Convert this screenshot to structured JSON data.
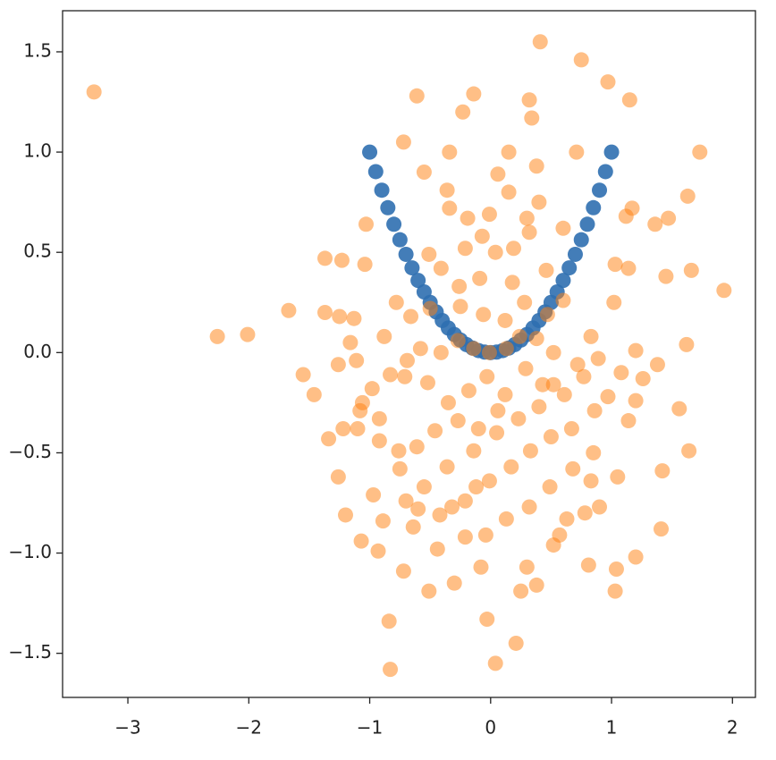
{
  "chart_data": {
    "type": "scatter",
    "xlim": [
      -3.54,
      2.19
    ],
    "ylim": [
      -1.72,
      1.705
    ],
    "xticks": [
      {
        "value": -3,
        "label": "−3"
      },
      {
        "value": -2,
        "label": "−2"
      },
      {
        "value": -1,
        "label": "−1"
      },
      0,
      1,
      2
    ],
    "yticks": [
      {
        "value": -1.5,
        "label": "−1.5"
      },
      {
        "value": -1.0,
        "label": "−1.0"
      },
      {
        "value": -0.5,
        "label": "−0.5"
      },
      {
        "value": 0,
        "label": "0.0"
      },
      0.5,
      {
        "value": 1.0,
        "label": "1.0"
      },
      1.5
    ],
    "series": [
      {
        "color": "#2f6fb0",
        "alpha": 0.9,
        "x": [
          -1,
          -0.95,
          -0.9,
          -0.85,
          -0.8,
          -0.75,
          -0.7,
          -0.65,
          -0.6,
          -0.55,
          -0.5,
          -0.45,
          -0.4,
          -0.35,
          -0.3,
          -0.25,
          -0.2,
          -0.15,
          -0.1,
          -0.05,
          0,
          0.05,
          0.1,
          0.15,
          0.2,
          0.25,
          0.3,
          0.35,
          0.4,
          0.45,
          0.5,
          0.55,
          0.6,
          0.65,
          0.7,
          0.75,
          0.8,
          0.85,
          0.9,
          0.95,
          1
        ],
        "y": [
          1,
          0.9025,
          0.81,
          0.7225,
          0.64,
          0.5625,
          0.49,
          0.4225,
          0.36,
          0.3025,
          0.25,
          0.2025,
          0.16,
          0.1225,
          0.09,
          0.0625,
          0.04,
          0.0225,
          0.01,
          0.0025,
          0,
          0.0025,
          0.01,
          0.0225,
          0.04,
          0.0625,
          0.09,
          0.1225,
          0.16,
          0.2025,
          0.25,
          0.3025,
          0.36,
          0.4225,
          0.49,
          0.5625,
          0.64,
          0.7225,
          0.81,
          0.9025,
          1
        ]
      },
      {
        "color": "#ff7f0e",
        "alpha": 0.5,
        "x": [
          -3.28,
          -2.26,
          -2.01,
          -1.67,
          0.41,
          0.75,
          0.97,
          1.15,
          1.73,
          1.93,
          -0.83,
          0.04,
          -0.84,
          0.21,
          -0.03,
          1.03,
          1.2,
          1.41,
          1.64,
          1.56,
          1.62,
          1.45,
          1.66,
          1.63,
          -0.61,
          -0.14,
          -0.23,
          0.32,
          0.34,
          -0.34,
          -0.72,
          0.15,
          0.38,
          0.71,
          1.36,
          1.47,
          1.17,
          1.12,
          1.03,
          1.14,
          -1.37,
          -1.23,
          -1.04,
          -1.03,
          -1.37,
          -1.25,
          -1.13,
          -1.55,
          -1.46,
          -1.34,
          -1.26,
          -1.2,
          -1.07,
          -0.93,
          -0.72,
          -0.51,
          -0.3,
          -0.08,
          0.3,
          0.38,
          0.25,
          0.52,
          0.81,
          1.04,
          1.42,
          1.14,
          1.26,
          1.38,
          1.2,
          1.02,
          0.83,
          0.72,
          0.52,
          0.4,
          0.23,
          0.05,
          -0.14,
          -0.36,
          -0.55,
          -0.7,
          -0.89,
          -0.64,
          -0.42,
          -0.21,
          -0.01,
          0.17,
          0.33,
          0.5,
          0.67,
          0.86,
          0.97,
          0.85,
          0.68,
          0.49,
          0.32,
          0.13,
          -0.04,
          -0.21,
          -0.44,
          -0.75,
          -0.92,
          -1.08,
          -0.98,
          -0.83,
          -0.69,
          -0.52,
          -0.35,
          -0.18,
          -0.03,
          0.12,
          0.29,
          0.43,
          0.61,
          0.77,
          -0.21,
          -0.07,
          0.04,
          0.19,
          0.32,
          0.46,
          0.18,
          -0.09,
          -0.26,
          -0.41,
          -0.51,
          -0.34,
          -0.19,
          -0.01,
          0.15,
          0.3,
          0.4,
          0.6,
          -0.36,
          -0.55,
          0.06,
          -0.25,
          -0.06,
          0.12,
          0.28,
          0.47,
          0.6,
          -0.5,
          -0.66,
          -0.88,
          -0.78,
          -1.16,
          -1.26,
          -1.11,
          -1.1,
          -1.22,
          -0.97,
          -0.61,
          -0.46,
          -0.27,
          -0.1,
          0.06,
          -0.14,
          -0.01,
          0.13,
          -0.27,
          0.24,
          -0.58,
          -0.41,
          0.52,
          0.38,
          -0.71,
          0.89,
          1.08,
          1.2,
          0.83,
          1.05,
          0.9,
          0.63,
          0.57,
          0.78,
          -0.6,
          -0.32,
          -0.12,
          -0.76,
          -0.92,
          -1.06
        ],
        "y": [
          1.3,
          0.08,
          0.09,
          0.21,
          1.55,
          1.46,
          1.35,
          1.26,
          1,
          0.31,
          -1.58,
          -1.55,
          -1.34,
          -1.45,
          -1.33,
          -1.19,
          -1.02,
          -0.88,
          -0.49,
          -0.28,
          0.04,
          0.38,
          0.41,
          0.78,
          1.28,
          1.29,
          1.2,
          1.26,
          1.17,
          1,
          1.05,
          1,
          0.93,
          1,
          0.64,
          0.67,
          0.72,
          0.68,
          0.44,
          0.42,
          0.47,
          0.46,
          0.44,
          0.64,
          0.2,
          0.18,
          0.17,
          -0.11,
          -0.21,
          -0.43,
          -0.62,
          -0.81,
          -0.94,
          -0.99,
          -1.09,
          -1.19,
          -1.15,
          -1.07,
          -1.07,
          -1.16,
          -1.19,
          -0.96,
          -1.06,
          -1.08,
          -0.59,
          -0.34,
          -0.13,
          -0.06,
          0.01,
          0.25,
          0.08,
          -0.06,
          -0.16,
          -0.27,
          -0.33,
          -0.4,
          -0.49,
          -0.57,
          -0.67,
          -0.74,
          -0.84,
          -0.87,
          -0.81,
          -0.74,
          -0.64,
          -0.57,
          -0.49,
          -0.42,
          -0.38,
          -0.29,
          -0.22,
          -0.5,
          -0.58,
          -0.67,
          -0.77,
          -0.83,
          -0.91,
          -0.92,
          -0.98,
          -0.58,
          -0.44,
          -0.29,
          -0.18,
          -0.11,
          -0.04,
          -0.15,
          -0.25,
          -0.19,
          -0.12,
          -0.21,
          -0.08,
          -0.16,
          -0.21,
          -0.12,
          0.52,
          0.58,
          0.5,
          0.52,
          0.6,
          0.41,
          0.35,
          0.37,
          0.33,
          0.42,
          0.49,
          0.72,
          0.67,
          0.69,
          0.8,
          0.67,
          0.75,
          0.62,
          0.81,
          0.9,
          0.89,
          0.23,
          0.19,
          0.16,
          0.25,
          0.19,
          0.26,
          0.22,
          0.18,
          0.08,
          0.25,
          0.05,
          -0.06,
          -0.04,
          -0.38,
          -0.38,
          -0.71,
          -0.47,
          -0.39,
          -0.34,
          -0.38,
          -0.29,
          0.02,
          0,
          0.02,
          0.06,
          0.08,
          0.02,
          0,
          0,
          0.07,
          -0.12,
          -0.03,
          -0.1,
          -0.24,
          -0.64,
          -0.62,
          -0.77,
          -0.83,
          -0.91,
          -0.8,
          -0.78,
          -0.77,
          -0.67,
          -0.49,
          -0.33,
          -0.25
        ]
      }
    ]
  }
}
